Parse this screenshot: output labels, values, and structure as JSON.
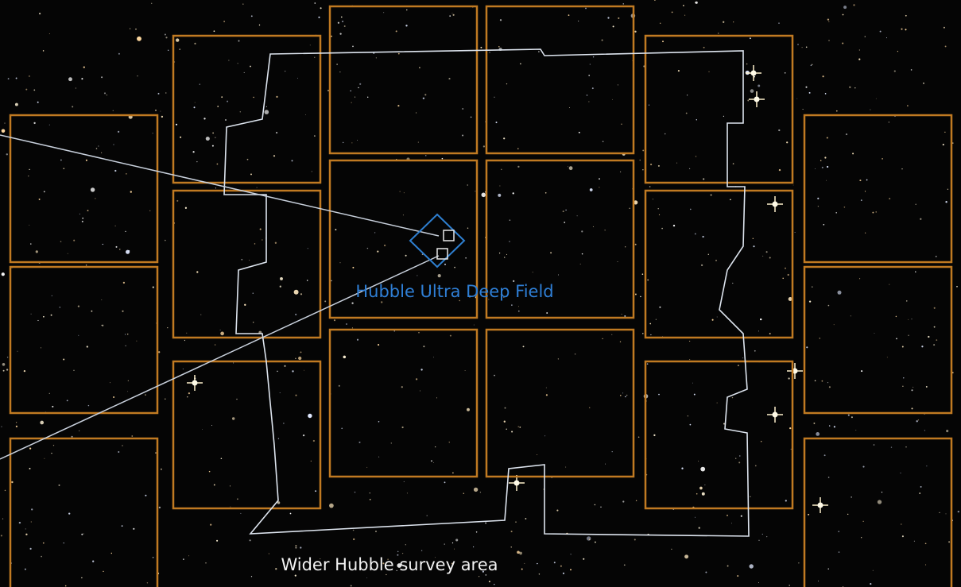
{
  "labels": {
    "udf": "Hubble Ultra Deep Field",
    "survey": "Wider Hubble survey area"
  }
}
